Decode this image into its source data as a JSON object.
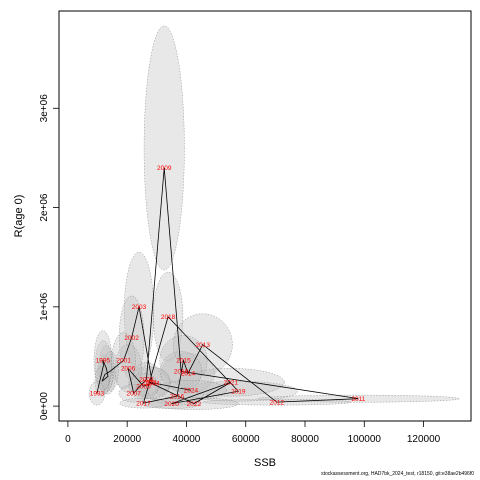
{
  "chart_data": {
    "type": "scatter",
    "xlabel": "SSB",
    "ylabel": "R(age 0)",
    "xlim": [
      -3000,
      136000
    ],
    "ylim": [
      -150000,
      3980000
    ],
    "xticks": [
      0,
      20000,
      40000,
      60000,
      80000,
      100000,
      120000
    ],
    "xtick_labels": [
      "0",
      "20000",
      "40000",
      "60000",
      "80000",
      "100000",
      "120000"
    ],
    "yticks": [
      0,
      1000000,
      2000000,
      3000000
    ],
    "ytick_labels": [
      "0e+00",
      "1e+06",
      "2e+06",
      "3e+06"
    ],
    "grid": false,
    "points": [
      {
        "year": "1993",
        "x": 9800,
        "y": 130000
      },
      {
        "year": "1994",
        "x": 12000,
        "y": 410000,
        "label": ""
      },
      {
        "year": "1995",
        "x": 11800,
        "y": 460000
      },
      {
        "year": "1996",
        "x": 13000,
        "y": 380000,
        "label": ""
      },
      {
        "year": "1997",
        "x": 13500,
        "y": 300000,
        "label": ""
      },
      {
        "year": "1998",
        "x": 11500,
        "y": 250000,
        "label": ""
      },
      {
        "year": "1999",
        "x": 12500,
        "y": 320000,
        "label": ""
      },
      {
        "year": "2000",
        "x": 14200,
        "y": 350000,
        "label": ""
      },
      {
        "year": "2001",
        "x": 18800,
        "y": 460000
      },
      {
        "year": "2002",
        "x": 21500,
        "y": 690000
      },
      {
        "year": "2003",
        "x": 24000,
        "y": 1000000
      },
      {
        "year": "2004",
        "x": 28500,
        "y": 230000
      },
      {
        "year": "2005",
        "x": 25500,
        "y": 200000
      },
      {
        "year": "2006",
        "x": 20300,
        "y": 380000
      },
      {
        "year": "2007",
        "x": 22200,
        "y": 130000
      },
      {
        "year": "2008",
        "x": 26500,
        "y": 270000
      },
      {
        "year": "2009",
        "x": 32500,
        "y": 2400000
      },
      {
        "year": "2010",
        "x": 38200,
        "y": 350000
      },
      {
        "year": "2011",
        "x": 98000,
        "y": 75000
      },
      {
        "year": "2012",
        "x": 70500,
        "y": 40000
      },
      {
        "year": "2013",
        "x": 45500,
        "y": 620000
      },
      {
        "year": "2014",
        "x": 40500,
        "y": 330000
      },
      {
        "year": "2015",
        "x": 39000,
        "y": 460000
      },
      {
        "year": "2016",
        "x": 36800,
        "y": 100000
      },
      {
        "year": "2017",
        "x": 25500,
        "y": 30000
      },
      {
        "year": "2018",
        "x": 33800,
        "y": 900000
      },
      {
        "year": "2019",
        "x": 57500,
        "y": 150000
      },
      {
        "year": "2020",
        "x": 35000,
        "y": 25000
      },
      {
        "year": "2021",
        "x": 55000,
        "y": 240000
      },
      {
        "year": "2022",
        "x": 42500,
        "y": 25000
      },
      {
        "year": "2023",
        "x": 27500,
        "y": 240000
      },
      {
        "year": "2024",
        "x": 41500,
        "y": 160000
      }
    ],
    "uncertainty_ellipses": [
      {
        "cx": 32500,
        "cy": 2600000,
        "rx": 6800,
        "ry": 1230000
      },
      {
        "cx": 24000,
        "cy": 950000,
        "rx": 5000,
        "ry": 600000
      },
      {
        "cx": 33800,
        "cy": 900000,
        "rx": 5000,
        "ry": 450000
      },
      {
        "cx": 45500,
        "cy": 620000,
        "rx": 10000,
        "ry": 310000
      },
      {
        "cx": 21500,
        "cy": 690000,
        "rx": 4200,
        "ry": 420000
      },
      {
        "cx": 98000,
        "cy": 75000,
        "rx": 34000,
        "ry": 36000
      },
      {
        "cx": 70500,
        "cy": 40000,
        "rx": 25000,
        "ry": 30000
      },
      {
        "cx": 57500,
        "cy": 150000,
        "rx": 20000,
        "ry": 100000
      },
      {
        "cx": 55000,
        "cy": 240000,
        "rx": 18000,
        "ry": 140000
      },
      {
        "cx": 40500,
        "cy": 330000,
        "rx": 9000,
        "ry": 200000
      },
      {
        "cx": 39000,
        "cy": 460000,
        "rx": 8000,
        "ry": 250000
      },
      {
        "cx": 38200,
        "cy": 350000,
        "rx": 7000,
        "ry": 200000
      },
      {
        "cx": 36800,
        "cy": 100000,
        "rx": 9000,
        "ry": 90000
      },
      {
        "cx": 41500,
        "cy": 160000,
        "rx": 12000,
        "ry": 100000
      },
      {
        "cx": 42500,
        "cy": 25000,
        "rx": 15000,
        "ry": 60000
      },
      {
        "cx": 35000,
        "cy": 25000,
        "rx": 10000,
        "ry": 50000
      },
      {
        "cx": 28500,
        "cy": 230000,
        "rx": 6000,
        "ry": 160000
      },
      {
        "cx": 27500,
        "cy": 240000,
        "rx": 7000,
        "ry": 160000
      },
      {
        "cx": 26500,
        "cy": 270000,
        "rx": 5000,
        "ry": 170000
      },
      {
        "cx": 25500,
        "cy": 200000,
        "rx": 5000,
        "ry": 130000
      },
      {
        "cx": 25500,
        "cy": 30000,
        "rx": 8000,
        "ry": 50000
      },
      {
        "cx": 22200,
        "cy": 130000,
        "rx": 5000,
        "ry": 90000
      },
      {
        "cx": 20300,
        "cy": 380000,
        "rx": 4500,
        "ry": 240000
      },
      {
        "cx": 18800,
        "cy": 460000,
        "rx": 4000,
        "ry": 280000
      },
      {
        "cx": 14200,
        "cy": 350000,
        "rx": 2800,
        "ry": 200000
      },
      {
        "cx": 13500,
        "cy": 300000,
        "rx": 2500,
        "ry": 180000
      },
      {
        "cx": 13000,
        "cy": 380000,
        "rx": 2600,
        "ry": 230000
      },
      {
        "cx": 12500,
        "cy": 320000,
        "rx": 2600,
        "ry": 190000
      },
      {
        "cx": 12000,
        "cy": 410000,
        "rx": 2800,
        "ry": 250000
      },
      {
        "cx": 11800,
        "cy": 460000,
        "rx": 3000,
        "ry": 300000
      },
      {
        "cx": 11500,
        "cy": 250000,
        "rx": 2400,
        "ry": 150000
      },
      {
        "cx": 9800,
        "cy": 130000,
        "rx": 2600,
        "ry": 120000
      }
    ],
    "colors": {
      "labels": "#ff0000",
      "line": "#000000",
      "ellipse_fill": "#bdbdbd",
      "ellipse_stroke": "#8c8c8c"
    }
  },
  "footer": "stockassessment.org, HAD7bk_2024_test, r18150, git:e38ae2b496f0"
}
